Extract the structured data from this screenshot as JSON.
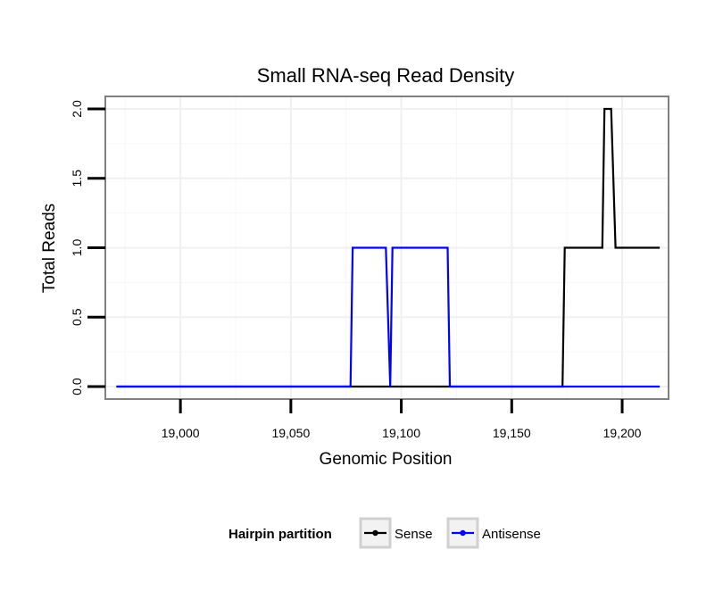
{
  "chart_data": {
    "type": "line",
    "title": "Small RNA-seq Read Density",
    "xlabel": "Genomic Position",
    "ylabel": "Total Reads",
    "xlim": [
      18966,
      19221
    ],
    "ylim": [
      -0.09,
      2.09
    ],
    "xticks": [
      19000,
      19050,
      19100,
      19150,
      19200
    ],
    "xtick_labels": [
      "19,000",
      "19,050",
      "19,100",
      "19,150",
      "19,200"
    ],
    "yticks": [
      0.0,
      0.5,
      1.0,
      1.5,
      2.0
    ],
    "ytick_labels": [
      "0.0",
      "0.5",
      "1.0",
      "1.5",
      "2.0"
    ],
    "grid": true,
    "legend": {
      "title": "Hairpin partition",
      "placement": "bottom"
    },
    "series": [
      {
        "name": "Sense",
        "color": "#000000",
        "x": [
          18971,
          19173,
          19174,
          19191,
          19192,
          19195,
          19197,
          19217
        ],
        "y": [
          0,
          0,
          1,
          1,
          2,
          2,
          1,
          1
        ]
      },
      {
        "name": "Antisense",
        "color": "#0000ff",
        "x": [
          18971,
          19077,
          19078,
          19093,
          19095,
          19096,
          19121,
          19122,
          19217
        ],
        "y": [
          0,
          0,
          1,
          1,
          0,
          1,
          1,
          0,
          0
        ]
      }
    ]
  }
}
